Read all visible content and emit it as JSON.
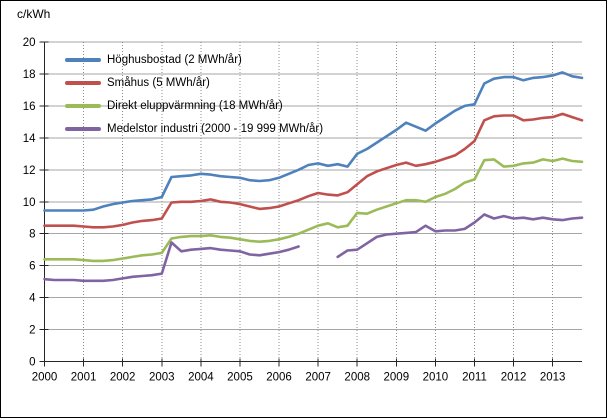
{
  "chart_data": {
    "type": "line",
    "title": "",
    "ylabel": "c/kWh",
    "xlabel": "",
    "xlim": [
      2000,
      2013.75
    ],
    "ylim": [
      0,
      20
    ],
    "x_start": 2000,
    "x_step": 0.25,
    "x_ticks": [
      2000,
      2001,
      2002,
      2003,
      2004,
      2005,
      2006,
      2007,
      2008,
      2009,
      2010,
      2011,
      2012,
      2013
    ],
    "y_ticks": [
      0,
      2,
      4,
      6,
      8,
      10,
      12,
      14,
      16,
      18,
      20
    ],
    "grid": {
      "horizontal": "solid",
      "vertical": "dotted"
    },
    "legend_position": "top-left-inside",
    "series": [
      {
        "key": "hoghusbostad",
        "name": "Höghusbostad (2 MWh/år)",
        "color": "#4F81BD",
        "values": [
          9.45,
          9.45,
          9.45,
          9.45,
          9.45,
          9.5,
          9.7,
          9.85,
          9.95,
          10.05,
          10.1,
          10.15,
          10.3,
          11.55,
          11.6,
          11.65,
          11.75,
          11.7,
          11.6,
          11.55,
          11.5,
          11.35,
          11.3,
          11.35,
          11.5,
          11.75,
          12.0,
          12.3,
          12.4,
          12.25,
          12.35,
          12.2,
          13.0,
          13.3,
          13.7,
          14.1,
          14.5,
          14.95,
          14.7,
          14.45,
          14.9,
          15.3,
          15.7,
          16.0,
          16.1,
          17.4,
          17.7,
          17.8,
          17.8,
          17.6,
          17.75,
          17.8,
          17.9,
          18.1,
          17.85,
          17.75
        ]
      },
      {
        "key": "smahus",
        "name": "Småhus (5 MWh/år)",
        "color": "#C0504D",
        "values": [
          8.5,
          8.5,
          8.5,
          8.5,
          8.45,
          8.4,
          8.4,
          8.45,
          8.55,
          8.7,
          8.8,
          8.85,
          8.95,
          9.95,
          10.0,
          10.0,
          10.05,
          10.15,
          10.0,
          9.95,
          9.85,
          9.7,
          9.55,
          9.6,
          9.7,
          9.9,
          10.1,
          10.35,
          10.55,
          10.45,
          10.4,
          10.6,
          11.1,
          11.6,
          11.9,
          12.1,
          12.3,
          12.45,
          12.25,
          12.35,
          12.5,
          12.7,
          12.9,
          13.3,
          13.8,
          15.1,
          15.35,
          15.4,
          15.4,
          15.1,
          15.15,
          15.25,
          15.3,
          15.5,
          15.3,
          15.1
        ]
      },
      {
        "key": "direkt-eluppvarmning",
        "name": "Direkt eluppvärmning (18 MWh/år)",
        "color": "#9BBB59",
        "values": [
          6.4,
          6.4,
          6.4,
          6.4,
          6.35,
          6.3,
          6.3,
          6.35,
          6.45,
          6.55,
          6.65,
          6.7,
          6.8,
          7.7,
          7.8,
          7.85,
          7.85,
          7.9,
          7.8,
          7.75,
          7.65,
          7.55,
          7.5,
          7.55,
          7.65,
          7.8,
          8.0,
          8.25,
          8.5,
          8.65,
          8.4,
          8.5,
          9.3,
          9.25,
          9.5,
          9.7,
          9.9,
          10.1,
          10.1,
          10.0,
          10.3,
          10.5,
          10.8,
          11.2,
          11.4,
          12.6,
          12.65,
          12.2,
          12.25,
          12.4,
          12.45,
          12.65,
          12.55,
          12.7,
          12.55,
          12.5
        ]
      },
      {
        "key": "medelstor-industri",
        "name": "Medelstor industri (2000 - 19 999 MWh/år)",
        "color": "#8064A2",
        "values": [
          5.15,
          5.1,
          5.1,
          5.1,
          5.05,
          5.05,
          5.05,
          5.1,
          5.2,
          5.3,
          5.35,
          5.4,
          5.5,
          7.45,
          6.9,
          7.0,
          7.05,
          7.1,
          7.0,
          6.95,
          6.9,
          6.7,
          6.65,
          6.75,
          6.85,
          7.0,
          7.2,
          null,
          null,
          null,
          6.55,
          6.95,
          7.0,
          7.4,
          7.8,
          7.95,
          8.0,
          8.05,
          8.1,
          8.5,
          8.15,
          8.2,
          8.2,
          8.3,
          8.7,
          9.2,
          8.95,
          9.1,
          8.95,
          9.0,
          8.9,
          9.0,
          8.9,
          8.85,
          8.95,
          9.0
        ]
      }
    ]
  }
}
